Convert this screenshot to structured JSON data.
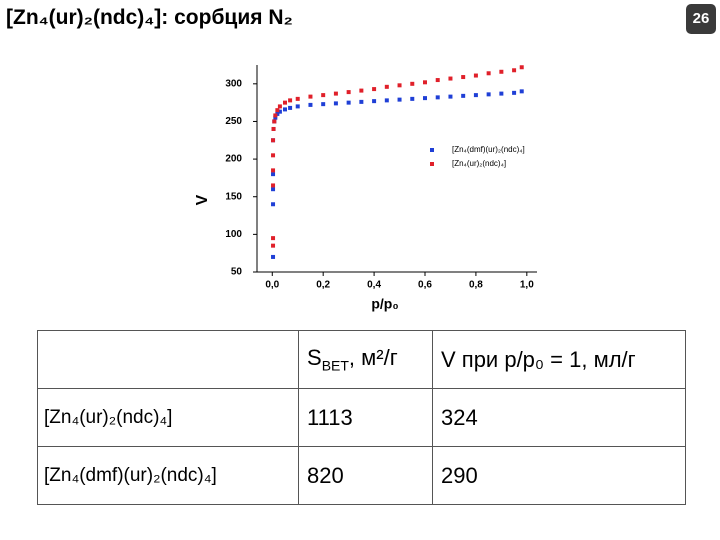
{
  "header": {
    "title": "[Zn₄(ur)₂(ndc)₄]: сорбция N₂",
    "page_number": "26"
  },
  "chart_data": {
    "type": "scatter",
    "x_label": "p/p₀",
    "y_label": "V",
    "xlim": [
      -0.06,
      1.04
    ],
    "ylim": [
      50,
      325
    ],
    "xticks": [
      {
        "value": 0,
        "label": "0,0"
      },
      {
        "value": 0.2,
        "label": "0,2"
      },
      {
        "value": 0.4,
        "label": "0,4"
      },
      {
        "value": 0.6,
        "label": "0,6"
      },
      {
        "value": 0.8,
        "label": "0,8"
      },
      {
        "value": 1,
        "label": "1,0"
      }
    ],
    "yticks": [
      50,
      100,
      150,
      200,
      250,
      300
    ],
    "legend": "center right",
    "series": [
      {
        "name": "[Zn₄(dmf)(ur)₂(ndc)₄]",
        "color": "#1f3fd6",
        "x": [
          0.003,
          0.003,
          0.003,
          0.003,
          0.003,
          0.005,
          0.008,
          0.012,
          0.02,
          0.03,
          0.05,
          0.07,
          0.1,
          0.15,
          0.2,
          0.25,
          0.3,
          0.35,
          0.4,
          0.45,
          0.5,
          0.55,
          0.6,
          0.65,
          0.7,
          0.75,
          0.8,
          0.85,
          0.9,
          0.95,
          0.98
        ],
        "values": [
          70,
          140,
          160,
          180,
          225,
          240,
          250,
          255,
          260,
          263,
          266,
          268,
          270,
          272,
          273,
          274,
          275,
          276,
          277,
          278,
          279,
          280,
          281,
          282,
          283,
          284,
          285,
          286,
          287,
          288,
          290
        ]
      },
      {
        "name": "[Zn₄(ur)₂(ndc)₄]",
        "color": "#e0202a",
        "x": [
          0.003,
          0.003,
          0.003,
          0.003,
          0.003,
          0.003,
          0.005,
          0.008,
          0.012,
          0.02,
          0.03,
          0.05,
          0.07,
          0.1,
          0.15,
          0.2,
          0.25,
          0.3,
          0.35,
          0.4,
          0.45,
          0.5,
          0.55,
          0.6,
          0.65,
          0.7,
          0.75,
          0.8,
          0.85,
          0.9,
          0.95,
          0.98
        ],
        "values": [
          85,
          95,
          165,
          185,
          205,
          225,
          240,
          250,
          258,
          265,
          270,
          275,
          278,
          280,
          283,
          285,
          287,
          289,
          291,
          293,
          296,
          298,
          300,
          302,
          305,
          307,
          309,
          311,
          314,
          316,
          318,
          322
        ]
      }
    ]
  },
  "table": {
    "header": [
      [
        "S",
        "BET",
        ", м²/г"
      ],
      "V при p/p₀ = 1, мл/г"
    ],
    "rows": [
      [
        "[Zn₄(ur)₂(ndc)₄]",
        1113,
        324
      ],
      [
        "[Zn₄(dmf)(ur)₂(ndc)₄]",
        820,
        290
      ]
    ]
  }
}
